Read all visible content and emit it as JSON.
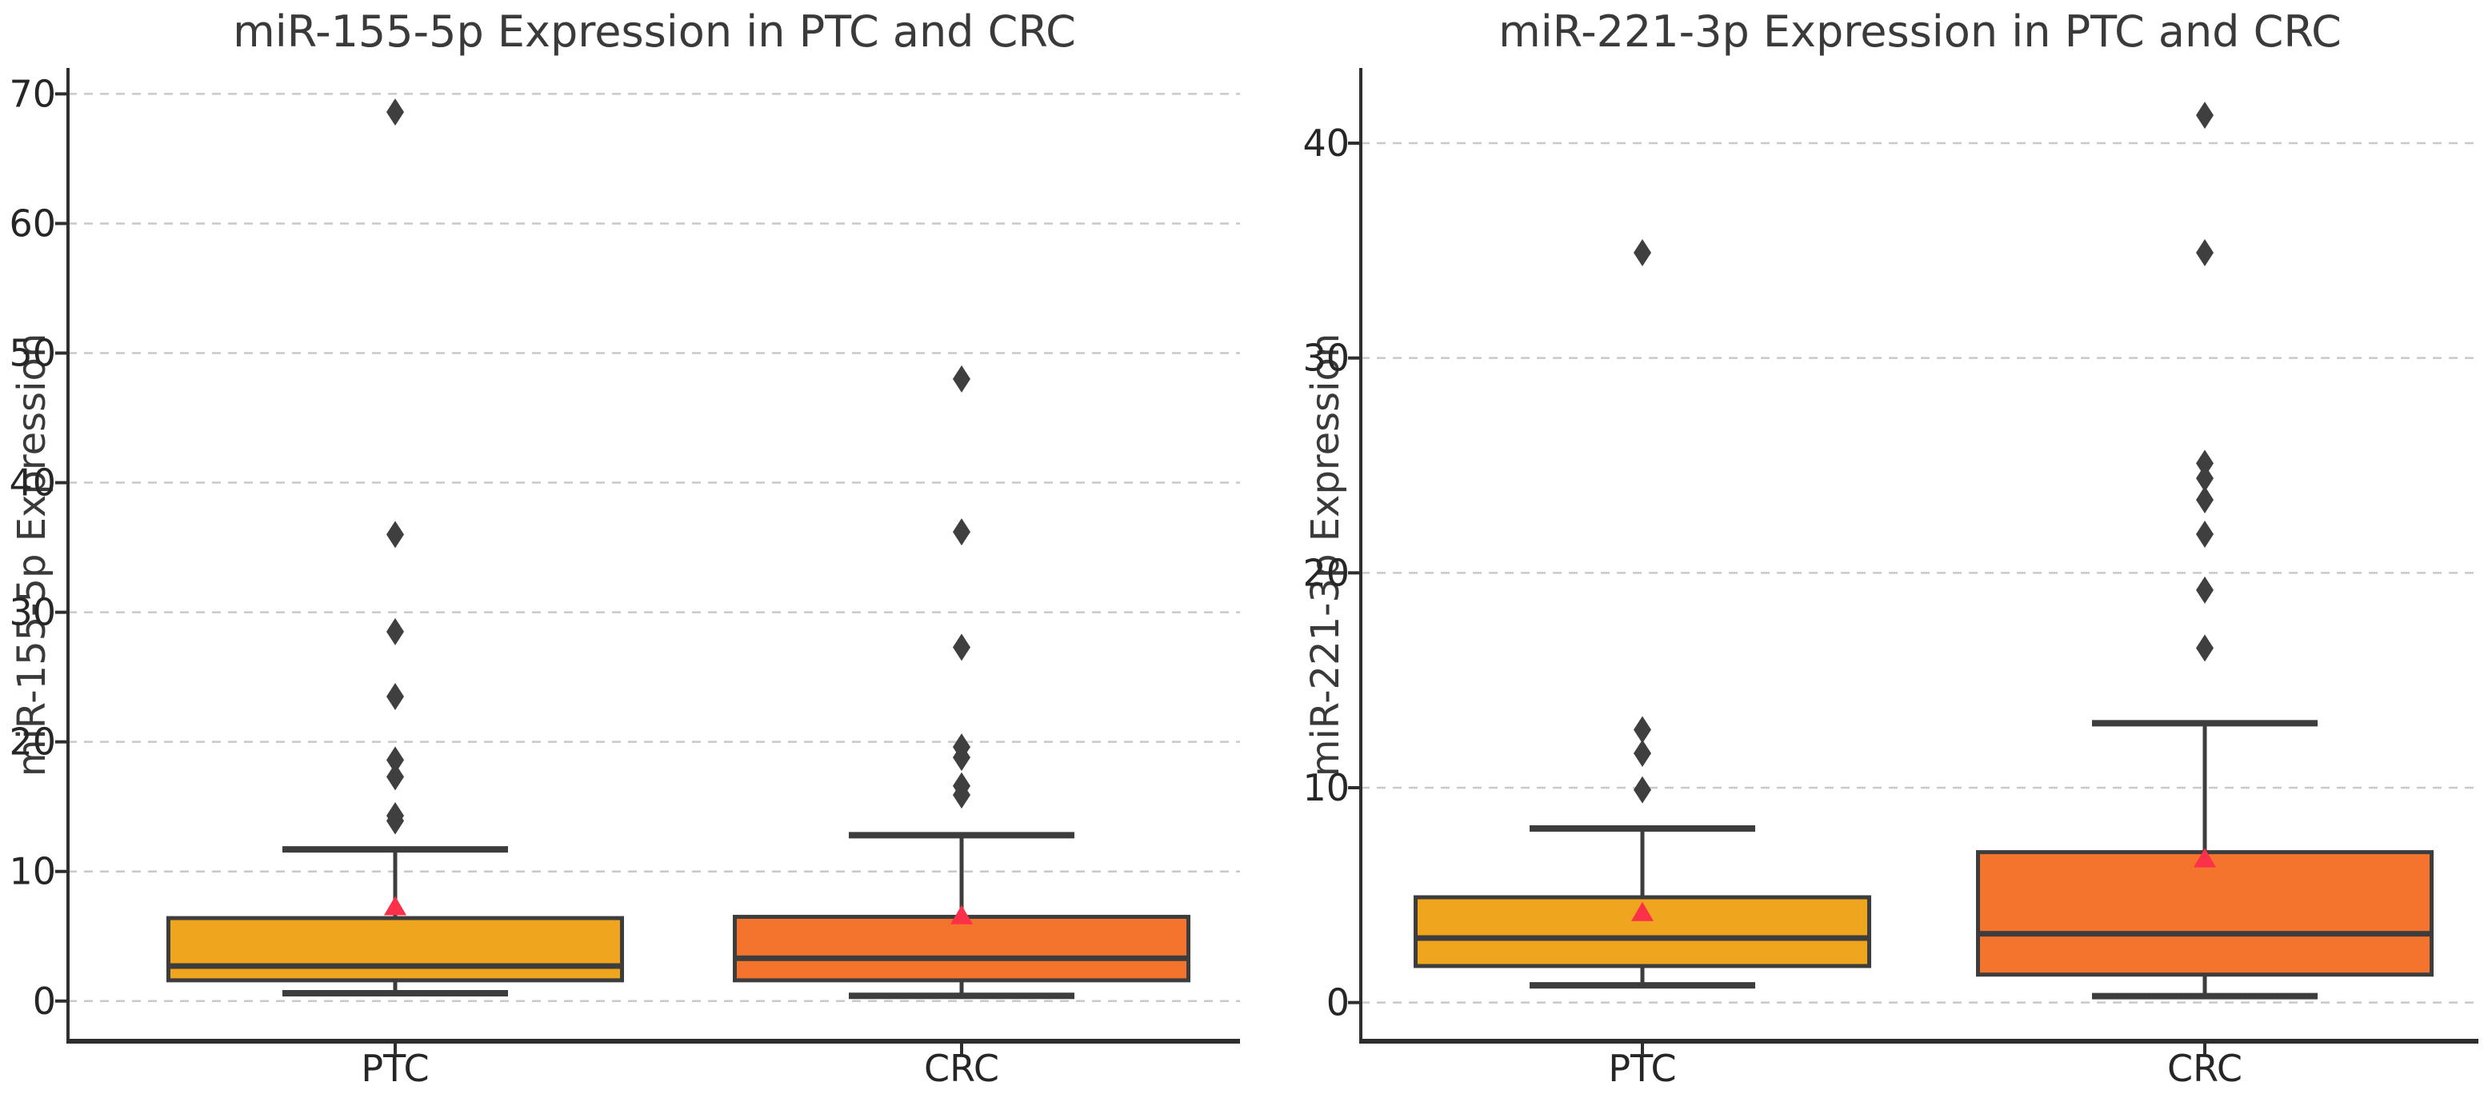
{
  "style": {
    "background": "#ffffff",
    "box_edge_color": "#3d3d3d",
    "median_color": "#3d3d3d",
    "whisker_color": "#3d3d3d",
    "outlier_color": "#3f3f3f",
    "mean_marker_color": "#fb3049",
    "grid_color": "#c9c9c9",
    "axis_color": "#2e2e2e",
    "tick_text_color": "#262626",
    "title_text_color": "#3a3a3a",
    "ptc_fill": "#f0a51f",
    "crc_fill": "#f4742e"
  },
  "chart_data": [
    {
      "type": "box",
      "title": "miR-155-5p Expression in PTC and CRC",
      "ylabel": "miR-155-5p Expression",
      "xlabel": "",
      "categories": [
        "PTC",
        "CRC"
      ],
      "y_ticks": [
        0,
        10,
        20,
        30,
        40,
        50,
        60,
        70
      ],
      "ylim": [
        -3.1,
        72.0
      ],
      "grid": "horizontal-dashed",
      "legend": "none",
      "boxes": [
        {
          "label": "PTC",
          "fill": "#f0a51f",
          "whislo": 0.6,
          "q1": 1.6,
          "med": 2.7,
          "q3": 6.4,
          "whishi": 11.7,
          "mean": 7.3,
          "outliers": [
            13.9,
            14.3,
            17.3,
            18.6,
            23.5,
            28.5,
            36.0,
            68.6
          ]
        },
        {
          "label": "CRC",
          "fill": "#f4742e",
          "whislo": 0.4,
          "q1": 1.6,
          "med": 3.3,
          "q3": 6.5,
          "whishi": 12.8,
          "mean": 6.6,
          "outliers": [
            15.9,
            16.6,
            18.8,
            19.6,
            27.3,
            36.2,
            48.0
          ]
        }
      ]
    },
    {
      "type": "box",
      "title": "miR-221-3p Expression in PTC and CRC",
      "ylabel": "miR-221-3p Expression",
      "xlabel": "",
      "categories": [
        "PTC",
        "CRC"
      ],
      "y_ticks": [
        0,
        10,
        20,
        30,
        40
      ],
      "ylim": [
        -1.8,
        43.5
      ],
      "grid": "horizontal-dashed",
      "legend": "none",
      "boxes": [
        {
          "label": "PTC",
          "fill": "#f0a51f",
          "whislo": 0.8,
          "q1": 1.7,
          "med": 3.0,
          "q3": 4.9,
          "whishi": 8.1,
          "mean": 4.2,
          "outliers": [
            9.9,
            11.6,
            12.7,
            34.9
          ]
        },
        {
          "label": "CRC",
          "fill": "#f4742e",
          "whislo": 0.3,
          "q1": 1.3,
          "med": 3.2,
          "q3": 7.0,
          "whishi": 13.0,
          "mean": 6.7,
          "outliers": [
            16.5,
            19.2,
            21.8,
            23.4,
            24.4,
            25.1,
            34.9,
            41.3
          ]
        }
      ]
    }
  ]
}
